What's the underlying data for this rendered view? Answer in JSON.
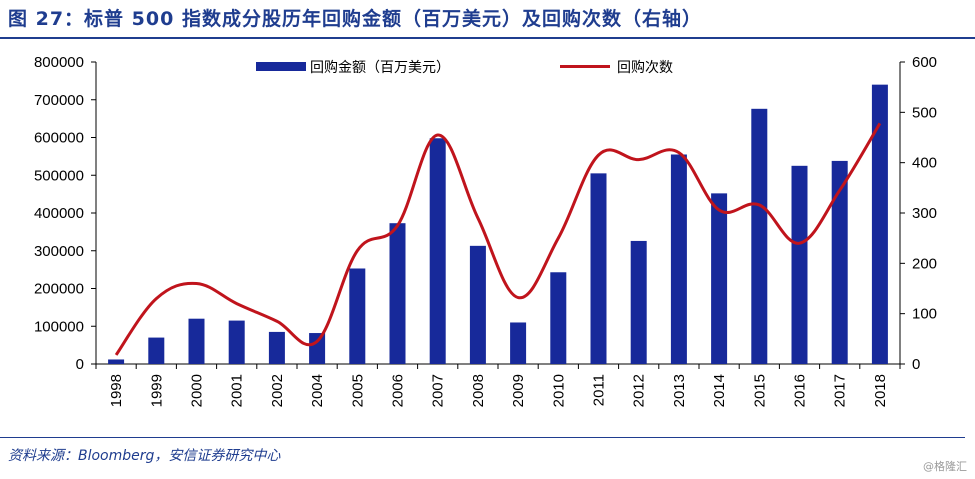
{
  "title": "图 27：标普 500 指数成分股历年回购金额（百万美元）及回购次数（右轴）",
  "source": "资料来源：Bloomberg，安信证券研究中心",
  "watermark": "@格隆汇",
  "colors": {
    "bar": "#17299a",
    "line": "#c0141c",
    "accent": "#1f3d8f"
  },
  "chart_data": {
    "type": "bar+line",
    "categories": [
      "1998",
      "1999",
      "2000",
      "2001",
      "2002",
      "2004",
      "2005",
      "2006",
      "2007",
      "2008",
      "2009",
      "2010",
      "2011",
      "2012",
      "2013",
      "2014",
      "2015",
      "2016",
      "2017",
      "2018"
    ],
    "series": [
      {
        "name": "回购金额（百万美元）",
        "type": "bar",
        "axis": "left",
        "values": [
          12000,
          70000,
          120000,
          115000,
          85000,
          82000,
          253000,
          373000,
          598000,
          313000,
          110000,
          243000,
          505000,
          326000,
          555000,
          452000,
          676000,
          525000,
          538000,
          740000
        ]
      },
      {
        "name": "回购次数",
        "type": "line",
        "axis": "right",
        "values": [
          18,
          130,
          160,
          120,
          85,
          45,
          225,
          275,
          455,
          290,
          132,
          250,
          415,
          406,
          420,
          306,
          316,
          240,
          345,
          478
        ]
      }
    ],
    "ylim_left": [
      0,
      800000
    ],
    "yticks_left": [
      "0",
      "100000",
      "200000",
      "300000",
      "400000",
      "500000",
      "600000",
      "700000",
      "800000"
    ],
    "ylim_right": [
      0,
      600
    ],
    "yticks_right": [
      "0",
      "100",
      "200",
      "300",
      "400",
      "500",
      "600"
    ],
    "legend_position": "top",
    "grid": false
  }
}
